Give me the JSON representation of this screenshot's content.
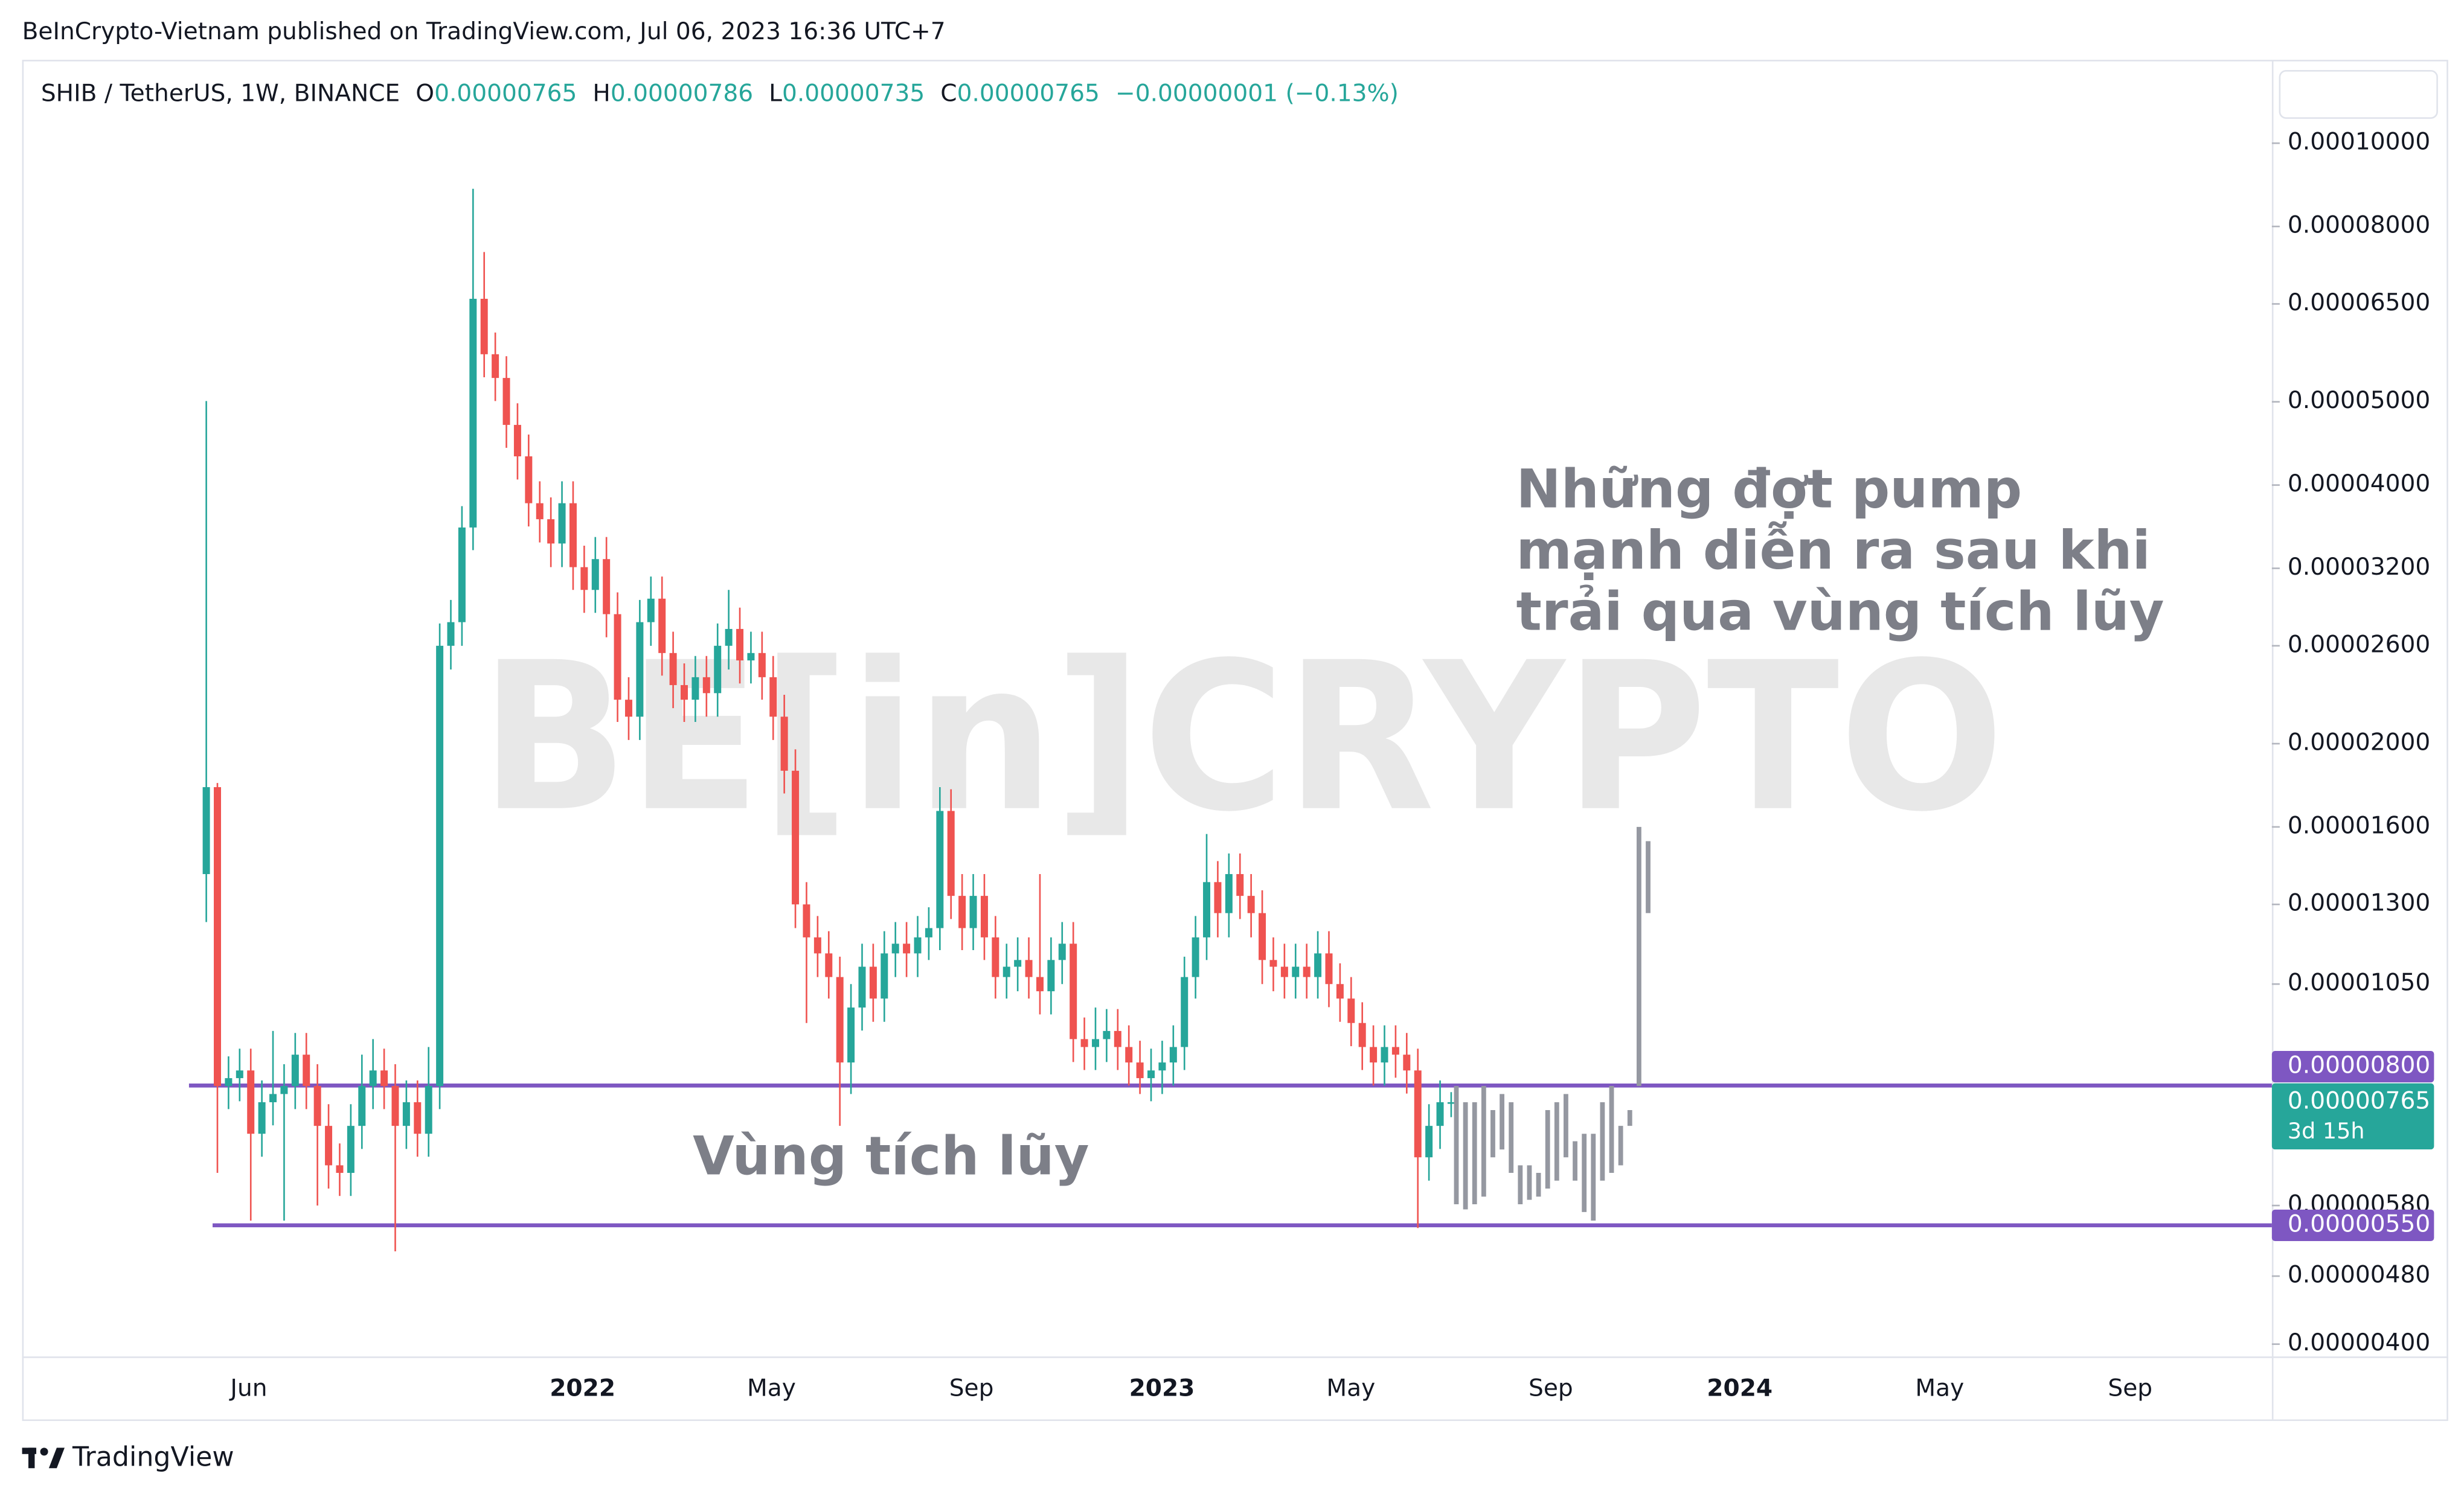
{
  "header": "BeInCrypto-Vietnam published on TradingView.com, Jul 06, 2023 16:36 UTC+7",
  "footer": "TradingView",
  "chart_data": {
    "type": "candlestick",
    "title": "SHIB / TetherUS, 1W, BINANCE",
    "legend": [
      {
        "key": "O",
        "value": "0.00000765"
      },
      {
        "key": "H",
        "value": "0.00000786"
      },
      {
        "key": "L",
        "value": "0.00000735"
      },
      {
        "key": "C",
        "value": "0.00000765"
      }
    ],
    "change": "−0.00000001 (−0.13%)",
    "watermark": "BE[in]CRYPTO",
    "annotations": [
      [
        "Những đợt pump",
        "mạnh diễn ra sau khi",
        "trải qua vùng tích lũy"
      ],
      [
        "Vùng tích lũy"
      ]
    ],
    "up_color": "#26a69a",
    "down_color": "#ef5350",
    "log_scale": true,
    "ylim": [
      3.87e-06,
      0.000124
    ],
    "yticks": [
      {
        "value": 0.0001,
        "label": "0.00010000"
      },
      {
        "value": 8e-05,
        "label": "0.00008000"
      },
      {
        "value": 6.5e-05,
        "label": "0.00006500"
      },
      {
        "value": 5e-05,
        "label": "0.00005000"
      },
      {
        "value": 4e-05,
        "label": "0.00004000"
      },
      {
        "value": 3.2e-05,
        "label": "0.00003200"
      },
      {
        "value": 2.6e-05,
        "label": "0.00002600"
      },
      {
        "value": 2e-05,
        "label": "0.00002000"
      },
      {
        "value": 1.6e-05,
        "label": "0.00001600"
      },
      {
        "value": 1.3e-05,
        "label": "0.00001300"
      },
      {
        "value": 1.05e-05,
        "label": "0.00001050"
      },
      {
        "value": 5.8e-06,
        "label": "0.00000580"
      },
      {
        "value": 4.8e-06,
        "label": "0.00000480"
      },
      {
        "value": 4e-06,
        "label": "0.00000400"
      }
    ],
    "xticks": [
      "Jun",
      "2022",
      "May",
      "Sep",
      "2023",
      "May",
      "Sep",
      "2024",
      "May",
      "Sep"
    ],
    "open": [
      1.41e-05,
      1.78e-05,
      7.99e-06,
      8.16e-06,
      8.33e-06,
      7.03e-06,
      7.65e-06,
      7.82e-06,
      7.99e-06,
      8.69e-06,
      7.99e-06,
      7.18e-06,
      6.46e-06,
      6.33e-06,
      7.18e-06,
      7.99e-06,
      8.33e-06,
      7.99e-06,
      7.18e-06,
      7.65e-06,
      7.03e-06,
      7.99e-06,
      2.6e-05,
      2.77e-05,
      3.57e-05,
      6.59e-05,
      5.68e-05,
      5.33e-05,
      4.7e-05,
      4.32e-05,
      3.81e-05,
      3.65e-05,
      3.42e-05,
      3.81e-05,
      3.21e-05,
      3.02e-05,
      3.28e-05,
      2.83e-05,
      2.25e-05,
      2.15e-05,
      2.77e-05,
      2.95e-05,
      2.55e-05,
      2.34e-05,
      2.25e-05,
      2.39e-05,
      2.29e-05,
      2.6e-05,
      2.72e-05,
      2.5e-05,
      2.55e-05,
      2.39e-05,
      2.15e-05,
      1.86e-05,
      1.3e-05,
      1.19e-05,
      1.14e-05,
      1.07e-05,
      8.51e-06,
      9.86e-06,
      1.1e-05,
      1.01e-05,
      1.14e-05,
      1.17e-05,
      1.14e-05,
      1.19e-05,
      1.22e-05,
      1.67e-05,
      1.33e-05,
      1.22e-05,
      1.33e-05,
      1.19e-05,
      1.07e-05,
      1.1e-05,
      1.12e-05,
      1.07e-05,
      1.03e-05,
      1.12e-05,
      1.17e-05,
      9.06e-06,
      8.87e-06,
      9.06e-06,
      9.26e-06,
      8.87e-06,
      8.51e-06,
      8.16e-06,
      8.33e-06,
      8.51e-06,
      8.87e-06,
      1.07e-05,
      1.19e-05,
      1.38e-05,
      1.27e-05,
      1.41e-05,
      1.33e-05,
      1.27e-05,
      1.12e-05,
      1.1e-05,
      1.07e-05,
      1.1e-05,
      1.07e-05,
      1.14e-05,
      1.05e-05,
      1.01e-05,
      9.46e-06,
      8.87e-06,
      8.51e-06,
      8.87e-06,
      8.69e-06,
      8.33e-06,
      6.6e-06,
      7.18e-06,
      7.65e-06
    ],
    "high": [
      5.01e-05,
      1.8e-05,
      8.65e-06,
      8.83e-06,
      8.83e-06,
      8.11e-06,
      9.26e-06,
      8.47e-06,
      9.21e-06,
      9.21e-06,
      8.47e-06,
      7.61e-06,
      6.85e-06,
      7.61e-06,
      8.69e-06,
      9.06e-06,
      8.83e-06,
      8.47e-06,
      8.11e-06,
      8.11e-06,
      8.87e-06,
      2.76e-05,
      2.94e-05,
      3.78e-05,
      8.85e-05,
      7.47e-05,
      6.02e-05,
      5.65e-05,
      4.98e-05,
      4.58e-05,
      4.04e-05,
      3.87e-05,
      4.04e-05,
      4.04e-05,
      3.4e-05,
      3.48e-05,
      3.48e-05,
      3e-05,
      2.39e-05,
      2.94e-05,
      3.13e-05,
      3.13e-05,
      2.7e-05,
      2.48e-05,
      2.53e-05,
      2.53e-05,
      2.76e-05,
      3.02e-05,
      2.88e-05,
      2.7e-05,
      2.7e-05,
      2.53e-05,
      2.28e-05,
      1.97e-05,
      1.38e-05,
      1.26e-05,
      1.21e-05,
      1.13e-05,
      1.05e-05,
      1.17e-05,
      1.17e-05,
      1.21e-05,
      1.24e-05,
      1.24e-05,
      1.26e-05,
      1.29e-05,
      1.78e-05,
      1.77e-05,
      1.41e-05,
      1.41e-05,
      1.41e-05,
      1.26e-05,
      1.17e-05,
      1.19e-05,
      1.19e-05,
      1.41e-05,
      1.19e-05,
      1.24e-05,
      1.24e-05,
      9.6e-06,
      9.86e-06,
      9.82e-06,
      9.82e-06,
      9.4e-06,
      9.02e-06,
      8.83e-06,
      9.02e-06,
      9.4e-06,
      1.13e-05,
      1.26e-05,
      1.57e-05,
      1.46e-05,
      1.49e-05,
      1.49e-05,
      1.41e-05,
      1.35e-05,
      1.19e-05,
      1.17e-05,
      1.17e-05,
      1.17e-05,
      1.21e-05,
      1.21e-05,
      1.11e-05,
      1.07e-05,
      1e-05,
      9.4e-06,
      9.4e-06,
      9.4e-06,
      9.21e-06,
      8.83e-06,
      7.61e-06,
      8.11e-06,
      7.86e-06
    ],
    "low": [
      1.24e-05,
      6.33e-06,
      7.51e-06,
      7.67e-06,
      5.57e-06,
      6.61e-06,
      7.19e-06,
      5.57e-06,
      7.51e-06,
      7.51e-06,
      5.8e-06,
      6.07e-06,
      5.95e-06,
      5.95e-06,
      6.75e-06,
      7.51e-06,
      7.51e-06,
      5.13e-06,
      6.75e-06,
      6.61e-06,
      6.61e-06,
      7.51e-06,
      2.44e-05,
      2.6e-05,
      3.36e-05,
      5.34e-05,
      5.01e-05,
      4.42e-05,
      4.06e-05,
      3.58e-05,
      3.43e-05,
      3.21e-05,
      3.21e-05,
      3.02e-05,
      2.84e-05,
      2.84e-05,
      2.66e-05,
      2.12e-05,
      2.02e-05,
      2.02e-05,
      2.6e-05,
      2.4e-05,
      2.2e-05,
      2.12e-05,
      2.12e-05,
      2.15e-05,
      2.15e-05,
      2.44e-05,
      2.35e-05,
      2.35e-05,
      2.25e-05,
      2.02e-05,
      1.75e-05,
      1.22e-05,
      9.46e-06,
      1.07e-05,
      1.01e-05,
      7.18e-06,
      7.82e-06,
      9.27e-06,
      9.49e-06,
      9.49e-06,
      1.07e-05,
      1.07e-05,
      1.07e-05,
      1.12e-05,
      1.15e-05,
      1.25e-05,
      1.15e-05,
      1.15e-05,
      1.12e-05,
      1.01e-05,
      1.01e-05,
      1.03e-05,
      1.01e-05,
      9.68e-06,
      9.68e-06,
      1.05e-05,
      8.52e-06,
      8.34e-06,
      8.34e-06,
      8.52e-06,
      8.34e-06,
      8e-06,
      7.82e-06,
      7.67e-06,
      7.82e-06,
      8e-06,
      8.34e-06,
      1.01e-05,
      1.12e-05,
      1.19e-05,
      1.19e-05,
      1.25e-05,
      1.19e-05,
      1.05e-05,
      1.03e-05,
      1.01e-05,
      1.01e-05,
      1.01e-05,
      1.01e-05,
      9.87e-06,
      9.49e-06,
      8.89e-06,
      8.34e-06,
      8e-06,
      8e-06,
      8.17e-06,
      7.83e-06,
      5.46e-06,
      6.2e-06,
      6.75e-06,
      7.35e-06
    ],
    "close": [
      1.78e-05,
      7.99e-06,
      8.16e-06,
      8.33e-06,
      7.03e-06,
      7.65e-06,
      7.82e-06,
      7.99e-06,
      8.69e-06,
      7.99e-06,
      7.18e-06,
      6.46e-06,
      6.33e-06,
      7.18e-06,
      7.99e-06,
      8.33e-06,
      7.99e-06,
      7.18e-06,
      7.65e-06,
      7.03e-06,
      7.99e-06,
      2.6e-05,
      2.77e-05,
      3.57e-05,
      6.59e-05,
      5.68e-05,
      5.33e-05,
      4.7e-05,
      4.32e-05,
      3.81e-05,
      3.65e-05,
      3.42e-05,
      3.81e-05,
      3.21e-05,
      3.02e-05,
      3.28e-05,
      2.83e-05,
      2.25e-05,
      2.15e-05,
      2.77e-05,
      2.95e-05,
      2.55e-05,
      2.34e-05,
      2.25e-05,
      2.39e-05,
      2.29e-05,
      2.6e-05,
      2.72e-05,
      2.5e-05,
      2.55e-05,
      2.39e-05,
      2.15e-05,
      1.86e-05,
      1.3e-05,
      1.19e-05,
      1.14e-05,
      1.07e-05,
      8.51e-06,
      9.86e-06,
      1.1e-05,
      1.01e-05,
      1.14e-05,
      1.17e-05,
      1.14e-05,
      1.19e-05,
      1.22e-05,
      1.67e-05,
      1.33e-05,
      1.22e-05,
      1.33e-05,
      1.19e-05,
      1.07e-05,
      1.1e-05,
      1.12e-05,
      1.07e-05,
      1.03e-05,
      1.12e-05,
      1.17e-05,
      9.06e-06,
      8.87e-06,
      9.06e-06,
      9.26e-06,
      8.87e-06,
      8.51e-06,
      8.16e-06,
      8.33e-06,
      8.51e-06,
      8.87e-06,
      1.07e-05,
      1.19e-05,
      1.38e-05,
      1.27e-05,
      1.41e-05,
      1.33e-05,
      1.27e-05,
      1.12e-05,
      1.1e-05,
      1.07e-05,
      1.1e-05,
      1.07e-05,
      1.14e-05,
      1.05e-05,
      1.01e-05,
      9.46e-06,
      8.87e-06,
      8.51e-06,
      8.87e-06,
      8.69e-06,
      8.33e-06,
      6.6e-06,
      7.18e-06,
      7.65e-06,
      7.65e-06
    ],
    "projection": {
      "color": "#9598a1",
      "high": [
        7.99e-06,
        7.65e-06,
        7.65e-06,
        7.99e-06,
        7.49e-06,
        7.82e-06,
        7.65e-06,
        6.46e-06,
        6.46e-06,
        6.33e-06,
        7.49e-06,
        7.65e-06,
        7.82e-06,
        6.89e-06,
        7.03e-06,
        7.03e-06,
        7.65e-06,
        7.99e-06,
        7.18e-06,
        7.49e-06,
        1.6e-05,
        1.54e-05
      ],
      "low": [
        5.82e-06,
        5.74e-06,
        5.82e-06,
        5.94e-06,
        6.6e-06,
        6.74e-06,
        6.33e-06,
        5.82e-06,
        5.89e-06,
        5.94e-06,
        6.07e-06,
        6.2e-06,
        6.6e-06,
        6.2e-06,
        5.7e-06,
        5.57e-06,
        6.2e-06,
        6.33e-06,
        6.46e-06,
        7.18e-06,
        7.99e-06,
        1.27e-05
      ]
    },
    "levels": [
      {
        "value": 8e-06,
        "label": "0.00000800"
      },
      {
        "value": 5.5e-06,
        "label": "0.00000550"
      }
    ],
    "level_color": "#7e57c2",
    "current": {
      "value": 7.65e-06,
      "label": "0.00000765",
      "countdown": "3d 15h"
    }
  }
}
